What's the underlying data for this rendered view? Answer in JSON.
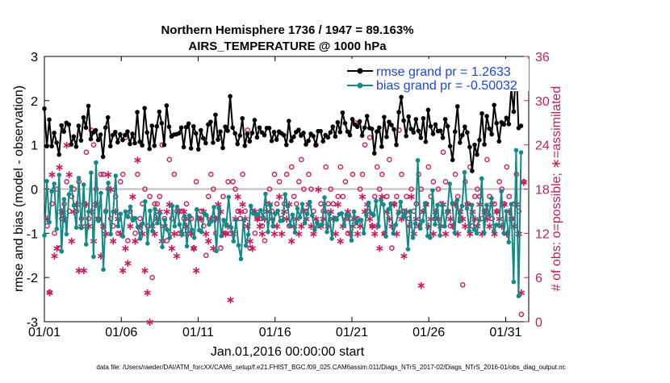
{
  "chart_data": {
    "type": "line",
    "title_line1": "Northern Hemisphere 1736 / 1947 = 89.163%",
    "title_line2": "AIRS_TEMPERATURE @ 1000 hPa",
    "ylabel_left": "rmse and bias (model - observation)",
    "ylabel_right": "# of obs: o=possible; ∗=assimilated",
    "xlabel": "Jan.01,2016 00:00:00 start",
    "footnote": "data file: /Users/raeder/DAI/ATM_forcXX/CAM6_setup/f.e21.FHIST_BGC.f09_025.CAM6assim.011/Diags_NTrS_2017-02/Diags_NTrS_2016-01/obs_diag_output.nc",
    "ylim_left": [
      -3,
      3
    ],
    "ylim_right": [
      0,
      36
    ],
    "xlim": [
      0,
      31.5
    ],
    "left_ticks": [
      "3",
      "2",
      "1",
      "0",
      "-1",
      "-2",
      "-3"
    ],
    "left_tick_values": [
      3,
      2,
      1,
      0,
      -1,
      -2,
      -3
    ],
    "right_ticks": [
      "36",
      "30",
      "24",
      "18",
      "12",
      "6",
      "0"
    ],
    "right_tick_values": [
      36,
      30,
      24,
      18,
      12,
      6,
      0
    ],
    "x_ticks": [
      "01/01",
      "01/06",
      "01/11",
      "01/16",
      "01/21",
      "01/26",
      "01/31"
    ],
    "x_tick_values": [
      0,
      5,
      10,
      15,
      20,
      25,
      30
    ],
    "zero_line": 0,
    "colors": {
      "rmse": "#000000",
      "bias": "#138a86",
      "obs": "#c81e5e",
      "legend_text": "#1a48d8",
      "zero_line": "#bdbdbd"
    },
    "series": [
      {
        "name": "rmse grand pr = 1.2633",
        "axis": "left",
        "marker": "dot",
        "values": [
          1.82,
          0.97,
          1.57,
          0.97,
          1.27,
          1.05,
          0.78,
          1.44,
          1.3,
          1.5,
          1.46,
          1.01,
          1.19,
          0.96,
          1.43,
          1.1,
          1.62,
          1.39,
          1.88,
          1.13,
          1.28,
          1.33,
          1.11,
          1.23,
          0.73,
          1.39,
          1.62,
          0.97,
          1.22,
          1.29,
          1.06,
          1.24,
          1.11,
          1.22,
          1.3,
          1.02,
          1.25,
          1.04,
          1.74,
          1.07,
          0.99,
          1.83,
          1.28,
          0.91,
          1.43,
          0.98,
          1.42,
          1.75,
          1.49,
          1.0,
          1.89,
          1.41,
          1.19,
          1.23,
          1.24,
          1.26,
          1.39,
          0.95,
          1.4,
          1.48,
          0.92,
          1.42,
          1.26,
          0.9,
          1.33,
          1.15,
          1.04,
          1.46,
          1.52,
          1.05,
          1.68,
          1.12,
          1.3,
          0.93,
          1.41,
          1.32,
          2.1,
          1.39,
          1.26,
          1.02,
          1.21,
          1.6,
          0.98,
          1.25,
          1.08,
          1.27,
          1.56,
          1.17,
          1.39,
          1.28,
          1.22,
          1.38,
          1.38,
          1.09,
          1.29,
          1.12,
          1.3,
          1.26,
          1.22,
          1.0,
          1.54,
          1.09,
          1.18,
          1.29,
          1.34,
          1.21,
          1.27,
          1.01,
          1.09,
          1.25,
          1.2,
          0.99,
          1.31,
          1.31,
          1.08,
          1.22,
          1.17,
          1.28,
          1.41,
          1.19,
          1.51,
          1.29,
          1.73,
          1.49,
          1.3,
          1.22,
          1.58,
          1.46,
          1.41,
          1.53,
          1.21,
          1.39,
          1.65,
          1.38,
          1.36,
          0.81,
          1.3,
          1.39,
          0.96,
          1.63,
          1.18,
          1.52,
          1.45,
          1.35,
          1.0,
          1.74,
          2.08,
          1.55,
          1.2,
          1.64,
          1.36,
          1.28,
          1.58,
          1.32,
          1.16,
          1.6,
          1.07,
          1.79,
          1.42,
          1.25,
          1.46,
          1.31,
          1.32,
          1.16,
          1.58,
          1.42,
          0.97,
          0.66,
          1.3,
          1.87,
          1.05,
          1.22,
          1.41,
          1.28,
          0.95,
          0.41,
          1.0,
          0.78,
          1.11,
          1.71,
          1.01,
          1.65,
          1.37,
          1.24,
          1.9,
          1.49,
          1.08,
          1.51,
          1.46,
          1.61,
          1.47,
          2.28,
          1.75,
          2.83,
          1.38,
          1.43
        ]
      },
      {
        "name": "bias grand pr = -0.50032",
        "axis": "left",
        "marker": "dot",
        "values": [
          -1.05,
          0.18,
          -0.75,
          -0.05,
          0.12,
          -0.9,
          0.32,
          -1.41,
          -0.23,
          -1.02,
          -0.12,
          0.05,
          -0.37,
          -0.87,
          0.25,
          -0.88,
          0.1,
          -1.25,
          -0.51,
          0.37,
          -1.53,
          0.6,
          -0.72,
          -0.09,
          -1.82,
          -0.52,
          0.14,
          -1.02,
          -0.51,
          0.3,
          -0.84,
          -0.56,
          -1.07,
          -0.51,
          -0.63,
          -0.4,
          -0.71,
          -0.66,
          -0.86,
          -1.12,
          -0.78,
          -0.28,
          -1.23,
          -0.49,
          -0.95,
          -0.45,
          -0.77,
          -0.55,
          -1.31,
          -0.7,
          -0.92,
          -1.1,
          -0.38,
          -0.84,
          -0.4,
          -0.8,
          -1.03,
          -0.61,
          -1.29,
          -0.6,
          -0.92,
          -1.1,
          -0.46,
          -0.93,
          -0.97,
          -0.55,
          -0.59,
          -0.8,
          -0.73,
          -0.41,
          -1.4,
          -0.43,
          -1.06,
          -0.7,
          -0.82,
          -0.18,
          -0.87,
          -1.18,
          -0.7,
          -1.27,
          -1.58,
          -0.69,
          -1.28,
          -1.03,
          -0.38,
          -0.55,
          -0.58,
          -0.57,
          -0.48,
          -0.65,
          -0.11,
          -0.97,
          -0.36,
          -0.84,
          -0.56,
          -0.49,
          -0.72,
          -0.71,
          -0.12,
          -0.38,
          -0.82,
          -0.58,
          -0.98,
          -0.44,
          -0.64,
          -0.34,
          -0.77,
          -0.56,
          -0.29,
          -0.6,
          -0.92,
          -0.76,
          -0.83,
          -0.8,
          -0.19,
          -0.97,
          -0.56,
          -1.12,
          -0.65,
          -0.69,
          -0.57,
          -0.55,
          -0.82,
          -0.58,
          -0.6,
          -1.16,
          -0.51,
          -0.77,
          -0.71,
          -0.7,
          -1.0,
          -0.59,
          -0.31,
          -0.55,
          -0.59,
          -0.27,
          -0.84,
          -0.25,
          -0.35,
          -1.07,
          -0.46,
          -0.33,
          -1.0,
          -0.81,
          -0.55,
          -0.29,
          -0.64,
          -0.52,
          -1.36,
          -0.5,
          -1.1,
          -0.78,
          0.65,
          -0.89,
          -0.72,
          -0.32,
          -1.06,
          -1.1,
          -0.03,
          -0.8,
          -0.36,
          -1.05,
          -0.37,
          -0.84,
          -0.51,
          0.12,
          -0.32,
          -0.99,
          -0.25,
          -0.73,
          -0.38,
          0.38,
          -0.44,
          -0.95,
          -0.36,
          -0.92,
          -1.0,
          -0.7,
          0.24,
          -0.99,
          -0.36,
          -0.58,
          -0.21,
          -0.95,
          -0.81,
          -0.82,
          -0.05,
          -1.0,
          -0.5,
          -1.2,
          -0.34,
          -2.1,
          0.88,
          -2.42,
          0.83
        ]
      },
      {
        "name": "possible",
        "axis": "right",
        "marker": "o",
        "values": [
          13,
          4,
          16,
          12,
          18,
          10,
          14,
          16,
          19,
          15,
          17,
          18,
          15,
          19,
          14,
          16,
          23,
          14,
          26,
          24,
          18,
          14,
          20,
          20,
          15,
          18,
          14,
          13,
          17,
          12,
          19,
          20,
          25,
          11,
          15,
          14,
          12,
          20,
          14,
          16,
          18,
          13,
          17,
          6,
          16,
          16,
          17,
          24,
          14,
          11,
          22,
          14,
          20,
          15,
          12,
          15,
          14,
          16,
          12,
          14,
          10,
          19,
          14,
          15,
          13,
          9,
          17,
          20,
          18,
          12,
          14,
          10,
          17,
          12,
          19,
          12,
          19,
          18,
          15,
          14,
          20,
          15,
          26,
          10,
          15,
          12,
          14,
          14,
          13,
          11,
          16,
          18,
          15,
          20,
          16,
          19,
          14,
          16,
          20,
          13,
          21,
          17,
          16,
          19,
          22,
          18,
          15,
          20,
          18,
          15,
          24,
          13,
          16,
          15,
          21,
          16,
          18,
          16,
          14,
          17,
          21,
          17,
          19,
          12,
          14,
          20,
          27,
          14,
          18,
          20,
          24,
          15,
          25,
          13,
          17,
          21,
          18,
          20,
          12,
          17,
          22,
          10,
          16,
          17,
          26,
          20,
          15,
          17,
          14,
          18,
          15,
          16,
          20,
          18,
          15,
          16,
          21,
          17,
          19,
          14,
          18,
          16,
          23,
          19,
          15,
          13,
          16,
          20,
          17,
          14,
          5,
          19,
          16,
          21,
          13,
          17,
          18,
          17,
          14,
          15,
          22,
          17,
          14,
          16,
          15,
          19,
          18,
          16,
          21,
          17,
          14,
          16,
          20,
          15,
          1,
          19
        ]
      },
      {
        "name": "assimilated",
        "axis": "right",
        "marker": "*",
        "values": [
          14,
          4,
          20,
          9,
          10,
          21,
          15,
          14,
          24,
          20,
          11,
          15,
          16,
          7,
          13,
          7,
          16,
          13,
          15,
          11,
          16,
          14,
          9,
          13,
          12,
          20,
          18,
          11,
          15,
          14,
          12,
          7,
          10,
          8,
          13,
          17,
          11,
          22,
          13,
          12,
          7,
          4,
          0,
          13,
          12,
          14,
          15,
          11,
          13,
          15,
          16,
          10,
          12,
          9,
          15,
          12,
          15,
          13,
          14,
          12,
          10,
          7,
          14,
          14,
          15,
          12,
          11,
          14,
          10,
          14,
          16,
          15,
          12,
          12,
          13,
          3,
          12,
          14,
          17,
          15,
          16,
          14,
          13,
          11,
          10,
          15,
          14,
          13,
          12,
          14,
          15,
          16,
          14,
          12,
          13,
          17,
          12,
          15,
          14,
          16,
          11,
          13,
          14,
          12,
          13,
          15,
          14,
          16,
          13,
          12,
          14,
          18,
          13,
          14,
          15,
          13,
          15,
          14,
          12,
          16,
          11,
          13,
          14,
          15,
          12,
          13,
          14,
          12,
          13,
          17,
          15,
          16,
          14,
          13,
          12,
          13,
          10,
          17,
          12,
          15,
          14,
          13,
          16,
          12,
          15,
          14,
          9,
          15,
          13,
          17,
          12,
          14,
          13,
          5,
          15,
          16,
          13,
          14,
          12,
          15,
          14,
          13,
          16,
          12,
          15,
          14,
          13,
          16,
          12,
          15,
          14,
          13,
          16,
          12,
          15,
          14,
          13,
          16,
          12,
          15,
          14,
          13,
          16,
          12,
          15,
          14,
          13,
          16,
          12,
          15,
          14,
          13,
          16,
          12,
          4,
          19
        ]
      }
    ],
    "legend": [
      {
        "label": "rmse grand pr = 1.2633"
      },
      {
        "label": "bias grand pr = -0.50032"
      }
    ],
    "legend_position": "top-right",
    "grid": false
  }
}
